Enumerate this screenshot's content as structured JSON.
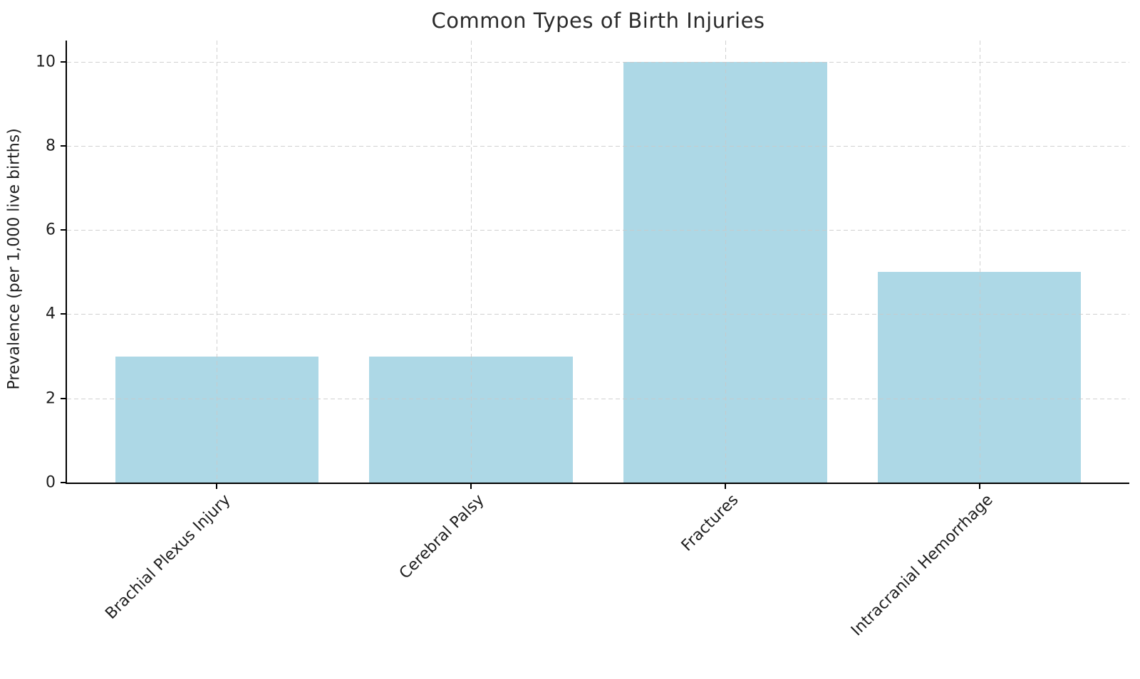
{
  "chart_data": {
    "type": "bar",
    "title": "Common Types of Birth Injuries",
    "xlabel": "",
    "ylabel": "Prevalence (per 1,000 live births)",
    "categories": [
      "Brachial Plexus Injury",
      "Cerebral Palsy",
      "Fractures",
      "Intracranial Hemorrhage"
    ],
    "values": [
      3,
      3,
      10,
      5
    ],
    "yticks": [
      0,
      2,
      4,
      6,
      8,
      10
    ],
    "ylim": [
      0,
      10.5
    ],
    "xlim": [
      -0.59,
      3.59
    ],
    "bar_width_fraction": 0.8,
    "bar_color": "#ADD8E6",
    "grid": {
      "visible": true,
      "linestyle": "dashed",
      "color": "#c9c9c9",
      "axes": "both",
      "above_bars": true
    },
    "legend": null,
    "background": "#ffffff",
    "text_color": "#1f1f1f",
    "axis_color": "#000000"
  }
}
